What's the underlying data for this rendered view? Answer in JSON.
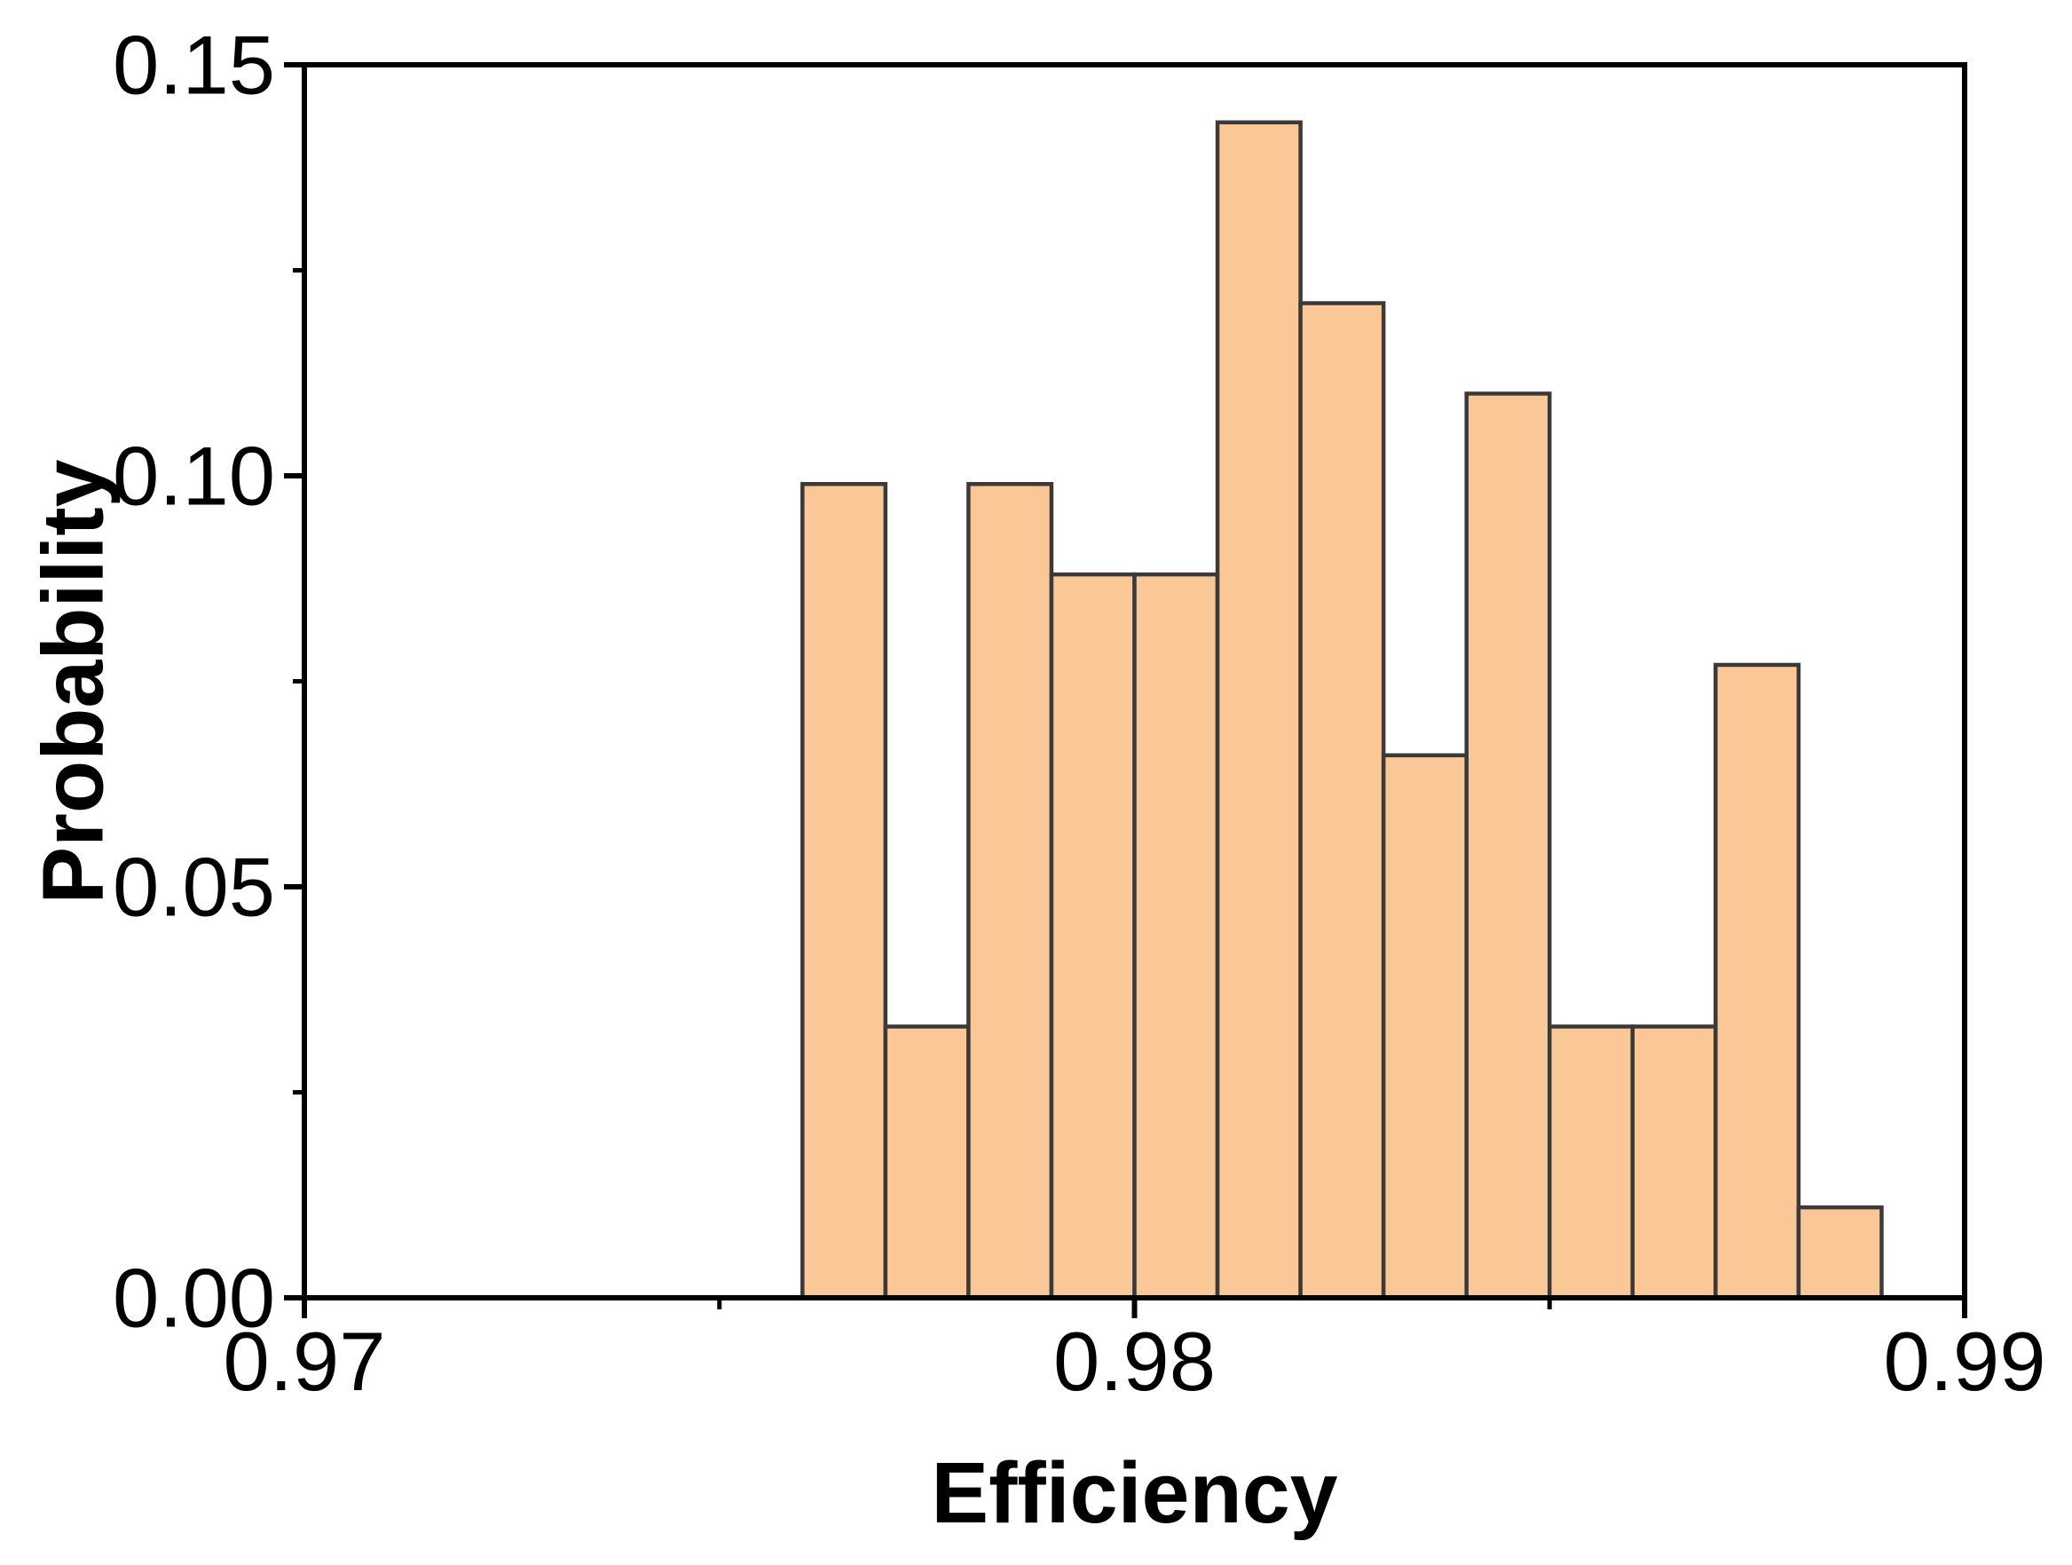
{
  "chart_data": {
    "type": "bar",
    "subtype": "histogram",
    "title": "",
    "xlabel": "Efficiency",
    "ylabel": "Probability",
    "xlim": [
      0.97,
      0.99
    ],
    "ylim": [
      0.0,
      0.15
    ],
    "grid": false,
    "legend": null,
    "bin_width": 0.001,
    "bin_edges": [
      0.976,
      0.977,
      0.978,
      0.979,
      0.98,
      0.981,
      0.982,
      0.983,
      0.984,
      0.985,
      0.986,
      0.987,
      0.988,
      0.989
    ],
    "values": [
      0.099,
      0.033,
      0.099,
      0.088,
      0.088,
      0.143,
      0.121,
      0.066,
      0.11,
      0.033,
      0.033,
      0.077,
      0.011
    ],
    "x_ticks": {
      "major": [
        0.97,
        0.98,
        0.99
      ],
      "major_labels": [
        "0.97",
        "0.98",
        "0.99"
      ],
      "minor": [
        0.975,
        0.985
      ]
    },
    "y_ticks": {
      "major": [
        0.0,
        0.05,
        0.1,
        0.15
      ],
      "major_labels": [
        "0.00",
        "0.05",
        "0.10",
        "0.15"
      ],
      "minor": [
        0.025,
        0.075,
        0.125
      ]
    },
    "colors": {
      "bar_fill": "#FAC896",
      "bar_edge": "#3A3A3A",
      "axis": "#000000",
      "text": "#000000",
      "background": "#FFFFFF"
    }
  }
}
